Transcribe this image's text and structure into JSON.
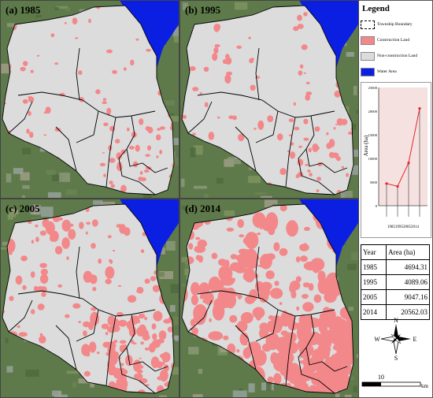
{
  "panels": [
    {
      "label": "(a) 1985",
      "level": 0.04
    },
    {
      "label": "(b) 1995",
      "level": 0.05
    },
    {
      "label": "(c) 2005",
      "level": 0.18
    },
    {
      "label": "(d) 2014",
      "level": 0.42
    }
  ],
  "legend": {
    "title": "Legend",
    "items": [
      {
        "label": "Township Boundary",
        "color": "#ffffff"
      },
      {
        "label": "Construction Land",
        "color": "#f3888a"
      },
      {
        "label": "Non-construction Land",
        "color": "#dcdcdc"
      },
      {
        "label": "Water Area",
        "color": "#0b1fe3"
      }
    ]
  },
  "chart_data": {
    "type": "line",
    "ylabel": "Area (ha)",
    "x": [
      "1985",
      "1995",
      "2005",
      "2014"
    ],
    "series": [
      {
        "values": [
          4694.31,
          4089.06,
          9047.16,
          20562.03
        ]
      }
    ],
    "ylim": [
      0,
      25000
    ],
    "yticks": [
      "0",
      "5000",
      "10000",
      "15000",
      "20000",
      "25000"
    ],
    "xtick_text": "1985199520052014",
    "color": "#e3262a",
    "grid": false
  },
  "table": {
    "headers": [
      "Year",
      "Area (ha)"
    ],
    "rows": [
      [
        "1985",
        "4694.31"
      ],
      [
        "1995",
        "4089.06"
      ],
      [
        "2005",
        "9047.16"
      ],
      [
        "2014",
        "20562.03"
      ]
    ]
  },
  "compass": {
    "n": "N",
    "s": "S",
    "e": "E",
    "w": "W"
  },
  "scale": {
    "value": "10",
    "unit": "km"
  }
}
